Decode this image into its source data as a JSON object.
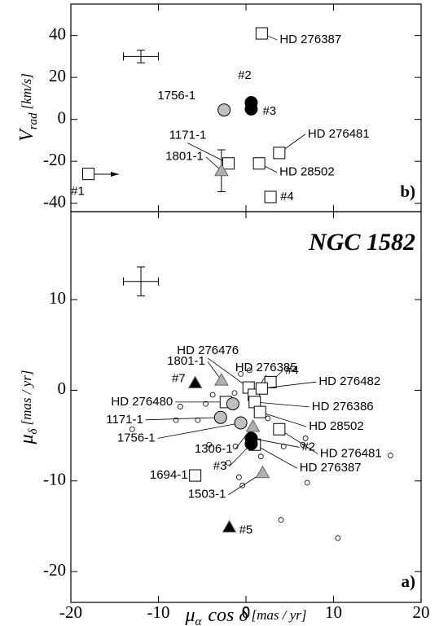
{
  "chart_data": [
    {
      "type": "scatter",
      "panel_label": "b)",
      "ylabel": {
        "symbol": "V",
        "sub": "rad",
        "unit": "[km/s]"
      },
      "xlim": [
        -20,
        20
      ],
      "xticks": [
        -20,
        -10,
        0,
        10,
        20
      ],
      "show_xticklabels": false,
      "ylim": [
        -44,
        55
      ],
      "yticks": [
        -40,
        -20,
        0,
        20,
        40
      ],
      "series": [
        {
          "marker": "square",
          "color": "#ffffff",
          "x": [
            1.8,
            3.8,
            1.5,
            2.8,
            -2.0,
            -18
          ],
          "values": [
            41,
            -16,
            -21,
            -37,
            -21,
            -26
          ],
          "labels": [
            "HD 276387",
            "HD 276481",
            "HD 28502",
            "#4",
            "1171-1",
            "#1"
          ]
        },
        {
          "marker": "circle",
          "color": "#c0c0c0",
          "x": [
            -2.5
          ],
          "values": [
            4.5
          ],
          "labels": [
            "1756-1"
          ]
        },
        {
          "marker": "triangle",
          "color": "#b0b0b0",
          "x": [
            -2.8
          ],
          "values": [
            -24.5
          ],
          "yerr": [
            10
          ],
          "labels": [
            "1801-1"
          ]
        },
        {
          "marker": "circle",
          "color": "#000000",
          "x": [
            0.6,
            0.6
          ],
          "values": [
            8,
            5
          ],
          "labels": [
            "#2",
            "#3"
          ]
        },
        {
          "marker": "none",
          "color": "#000000",
          "x": [
            -12
          ],
          "values": [
            30
          ],
          "xerr": [
            2
          ],
          "yerr": [
            3
          ]
        }
      ]
    },
    {
      "type": "scatter",
      "title": "NGC 1582",
      "panel_label": "a)",
      "ylabel": {
        "symbol": "μ",
        "sub": "δ",
        "unit": "[mas / yr]"
      },
      "xlabel": {
        "symbol": "μ",
        "sub": "α",
        "text": "cos δ",
        "unit": "[mas / yr]"
      },
      "xlim": [
        -20,
        20
      ],
      "xticks": [
        -20,
        -10,
        0,
        10,
        20
      ],
      "show_xticklabels": true,
      "ylim": [
        -23.4,
        19.7
      ],
      "yticks": [
        -20,
        -10,
        0,
        10
      ],
      "series": [
        {
          "marker": "small-circle",
          "color": "#ffffff",
          "x": [
            -13,
            -8,
            -7.5,
            -5.5,
            -4.6,
            -3.8,
            -0.6,
            0.4,
            -1.3,
            -4.2,
            -1.2,
            -0.8,
            -0.4,
            1.7,
            3.5,
            4.3,
            6.5,
            6.8,
            7.0,
            4.0,
            10.5,
            16.5,
            2.5,
            -2.0
          ],
          "values": [
            -4.3,
            -3.3,
            -1.8,
            -3.3,
            -1.5,
            -0.5,
            1.8,
            2.2,
            -0.3,
            -6.0,
            -6.2,
            -9.6,
            -10.5,
            -7.3,
            -4.3,
            -6.2,
            -6.0,
            -5.3,
            -10.2,
            -14.3,
            -16.3,
            -7.2,
            -3.1,
            -8.0
          ]
        },
        {
          "marker": "square",
          "color": "#ffffff",
          "x": [
            -2.3,
            0.3,
            0.9,
            2.8,
            1.8,
            1.0,
            1.6,
            3.8,
            1.0,
            -5.8
          ],
          "values": [
            -1.3,
            0.3,
            -0.5,
            0.9,
            0.2,
            -1.3,
            -2.4,
            -4.3,
            -6.0,
            -9.4
          ],
          "labels": [
            "HD 276480",
            "HD 276476",
            "HD 276385",
            "#4",
            "HD 276482",
            "HD 276386",
            "HD 28502",
            "HD 276481",
            "HD 276387",
            "1694-1"
          ]
        },
        {
          "marker": "circle",
          "color": "#c0c0c0",
          "x": [
            -1.5,
            -2.9,
            -0.6
          ],
          "values": [
            -1.5,
            -3.0,
            -3.6
          ],
          "labels": [
            null,
            "1171-1",
            "1756-1"
          ]
        },
        {
          "marker": "triangle",
          "color": "#b0b0b0",
          "x": [
            -2.8,
            0.8,
            1.9
          ],
          "values": [
            1.1,
            -4.0,
            -9.1
          ],
          "labels": [
            "1801-1",
            "1306-1",
            "1503-1"
          ]
        },
        {
          "marker": "triangle",
          "color": "#000000",
          "x": [
            -5.8,
            -1.9
          ],
          "values": [
            0.8,
            -15.1
          ],
          "labels": [
            "#7",
            "#5"
          ]
        },
        {
          "marker": "circle",
          "color": "#000000",
          "x": [
            0.6,
            0.6
          ],
          "values": [
            -5.3,
            -5.9
          ],
          "labels": [
            "#2",
            "#3"
          ]
        },
        {
          "marker": "none",
          "color": "#000000",
          "x": [
            -12
          ],
          "values": [
            12
          ],
          "xerr": [
            2
          ],
          "yerr": [
            1.6
          ]
        }
      ]
    }
  ]
}
